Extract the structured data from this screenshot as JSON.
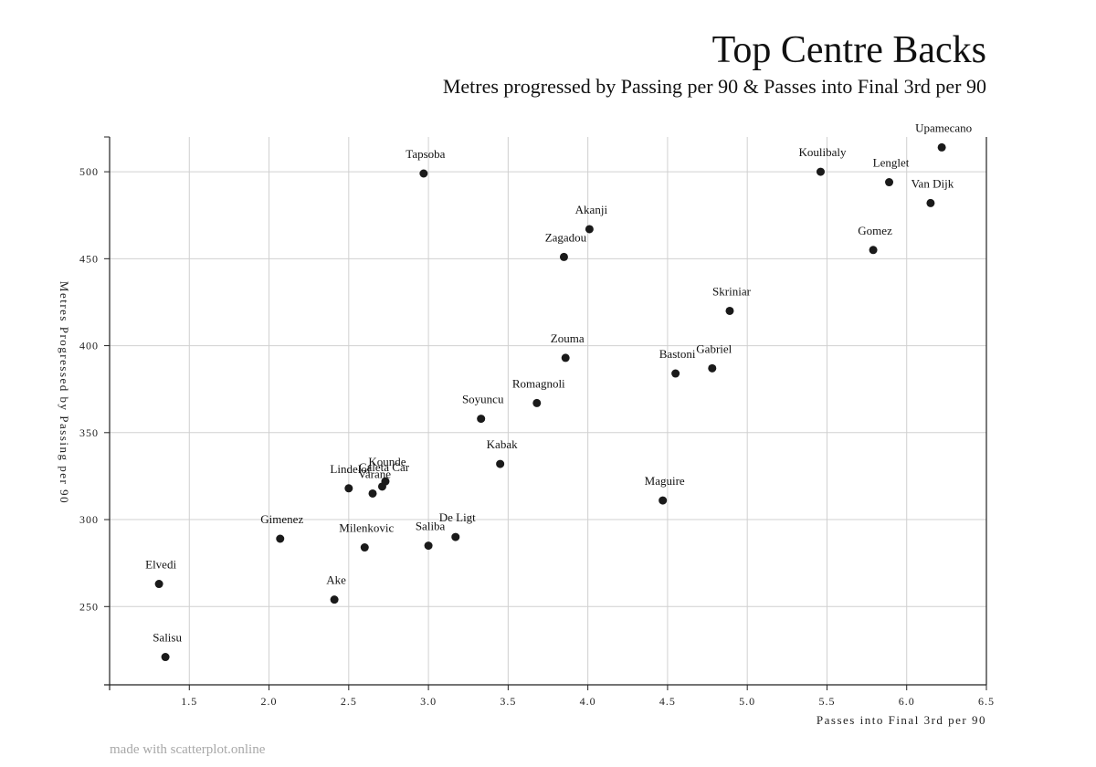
{
  "header": {
    "title": "Top Centre Backs",
    "subtitle": "Metres progressed by Passing per 90 & Passes into Final 3rd per 90"
  },
  "footer": {
    "credit": "made with scatterplot.online"
  },
  "colors": {
    "point": "#1a1a1a",
    "grid": "#d0d0d0",
    "axis": "#222222",
    "credit": "#a8a8a8"
  },
  "chart_data": {
    "type": "scatter",
    "title": "Top Centre Backs",
    "subtitle": "Metres progressed by Passing per 90 & Passes into Final 3rd per 90",
    "xlabel": "Passes into Final 3rd per 90",
    "ylabel": "Metres Progressed by Passing per 90",
    "xlim": [
      1.0,
      6.5
    ],
    "ylim": [
      205,
      520
    ],
    "xticks": [
      "1.5",
      "2.0",
      "2.5",
      "3.0",
      "3.5",
      "4.0",
      "4.5",
      "5.0",
      "5.5",
      "6.0",
      "6.5"
    ],
    "yticks": [
      "250",
      "300",
      "350",
      "400",
      "450",
      "500"
    ],
    "grid": true,
    "points": [
      {
        "label": "Upamecano",
        "x": 6.22,
        "y": 514
      },
      {
        "label": "Koulibaly",
        "x": 5.46,
        "y": 500
      },
      {
        "label": "Lenglet",
        "x": 5.89,
        "y": 494
      },
      {
        "label": "Van Dijk",
        "x": 6.15,
        "y": 482
      },
      {
        "label": "Tapsoba",
        "x": 2.97,
        "y": 499
      },
      {
        "label": "Akanji",
        "x": 4.01,
        "y": 467
      },
      {
        "label": "Zagadou",
        "x": 3.85,
        "y": 451
      },
      {
        "label": "Gomez",
        "x": 5.79,
        "y": 455
      },
      {
        "label": "Skriniar",
        "x": 4.89,
        "y": 420
      },
      {
        "label": "Zouma",
        "x": 3.86,
        "y": 393
      },
      {
        "label": "Bastoni",
        "x": 4.55,
        "y": 384
      },
      {
        "label": "Gabriel",
        "x": 4.78,
        "y": 387
      },
      {
        "label": "Romagnoli",
        "x": 3.68,
        "y": 367
      },
      {
        "label": "Soyuncu",
        "x": 3.33,
        "y": 358
      },
      {
        "label": "Kabak",
        "x": 3.45,
        "y": 332
      },
      {
        "label": "Maguire",
        "x": 4.47,
        "y": 311
      },
      {
        "label": "Kounde",
        "x": 2.73,
        "y": 322
      },
      {
        "label": "Caleta Car",
        "x": 2.71,
        "y": 319
      },
      {
        "label": "Varane",
        "x": 2.65,
        "y": 315
      },
      {
        "label": "Lindelof",
        "x": 2.5,
        "y": 318
      },
      {
        "label": "Gimenez",
        "x": 2.07,
        "y": 289
      },
      {
        "label": "Milenkovic",
        "x": 2.6,
        "y": 284
      },
      {
        "label": "Saliba",
        "x": 3.0,
        "y": 285
      },
      {
        "label": "De Ligt",
        "x": 3.17,
        "y": 290
      },
      {
        "label": "Elvedi",
        "x": 1.31,
        "y": 263
      },
      {
        "label": "Ake",
        "x": 2.41,
        "y": 254
      },
      {
        "label": "Salisu",
        "x": 1.35,
        "y": 221
      }
    ]
  }
}
